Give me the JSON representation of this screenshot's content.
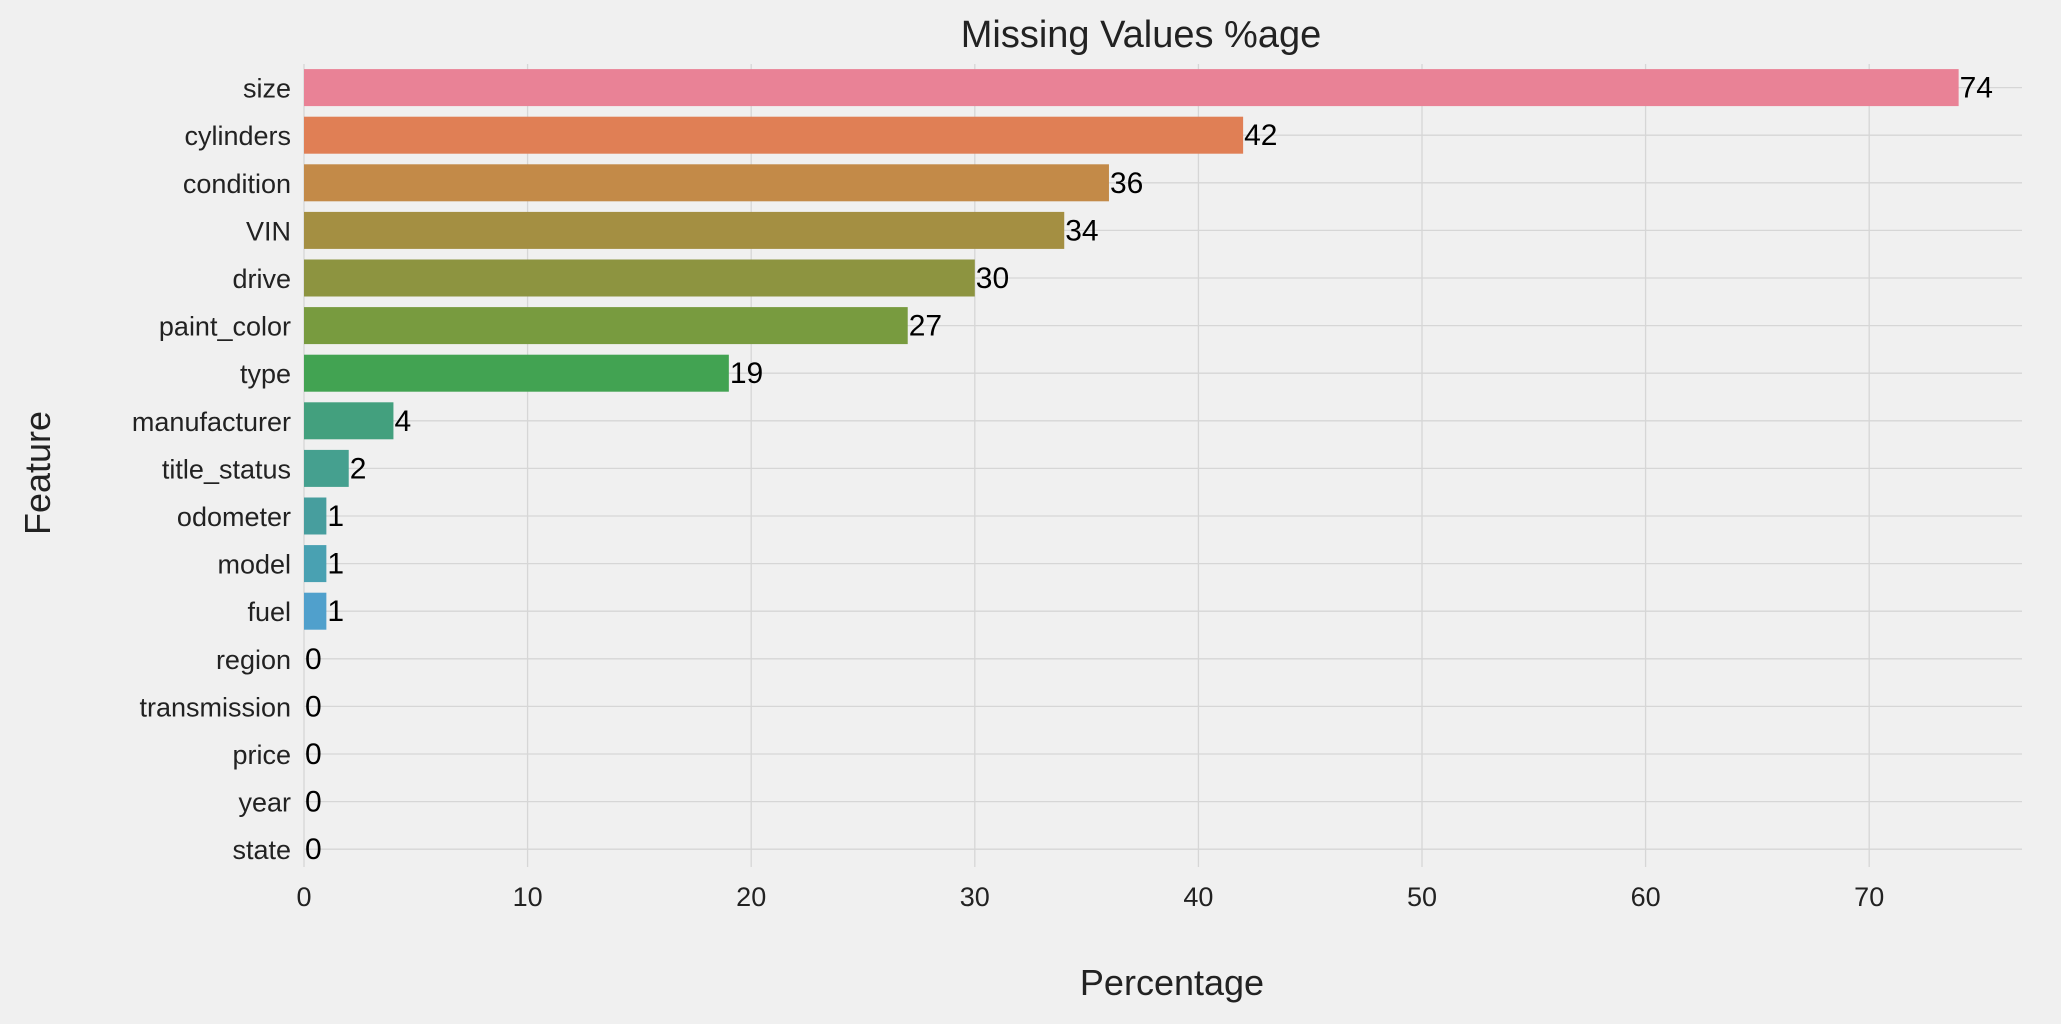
{
  "chart_data": {
    "type": "bar",
    "orientation": "horizontal",
    "title": "Missing Values %age",
    "xlabel": "Percentage",
    "ylabel": "Feature",
    "categories": [
      "size",
      "cylinders",
      "condition",
      "VIN",
      "drive",
      "paint_color",
      "type",
      "manufacturer",
      "title_status",
      "odometer",
      "model",
      "fuel",
      "region",
      "transmission",
      "price",
      "year",
      "state"
    ],
    "values": [
      74,
      42,
      36,
      34,
      30,
      27,
      19,
      4,
      2,
      1,
      1,
      1,
      0,
      0,
      0,
      0,
      0
    ],
    "value_labels": [
      "74",
      "42",
      "36",
      "34",
      "30",
      "27",
      "19",
      "4",
      "2",
      "1",
      "1",
      "1",
      "0",
      "0",
      "0",
      "0",
      "0"
    ],
    "colors": [
      "#e98296",
      "#e07f55",
      "#c38a48",
      "#a48f42",
      "#8d9440",
      "#789b3f",
      "#42a352",
      "#43a07e",
      "#45a08f",
      "#479e9e",
      "#49a1b2",
      "#50a0cc",
      "#6a9fdd",
      "#9c96e9",
      "#c98ce8",
      "#e684d6",
      "#eb82b4"
    ],
    "xlim": [
      0,
      77
    ],
    "xticks": [
      0,
      10,
      20,
      30,
      40,
      50,
      60,
      70
    ],
    "xtick_labels": [
      "0",
      "10",
      "20",
      "30",
      "40",
      "50",
      "60",
      "70"
    ],
    "grid": true,
    "background": "#f0f0f0"
  }
}
